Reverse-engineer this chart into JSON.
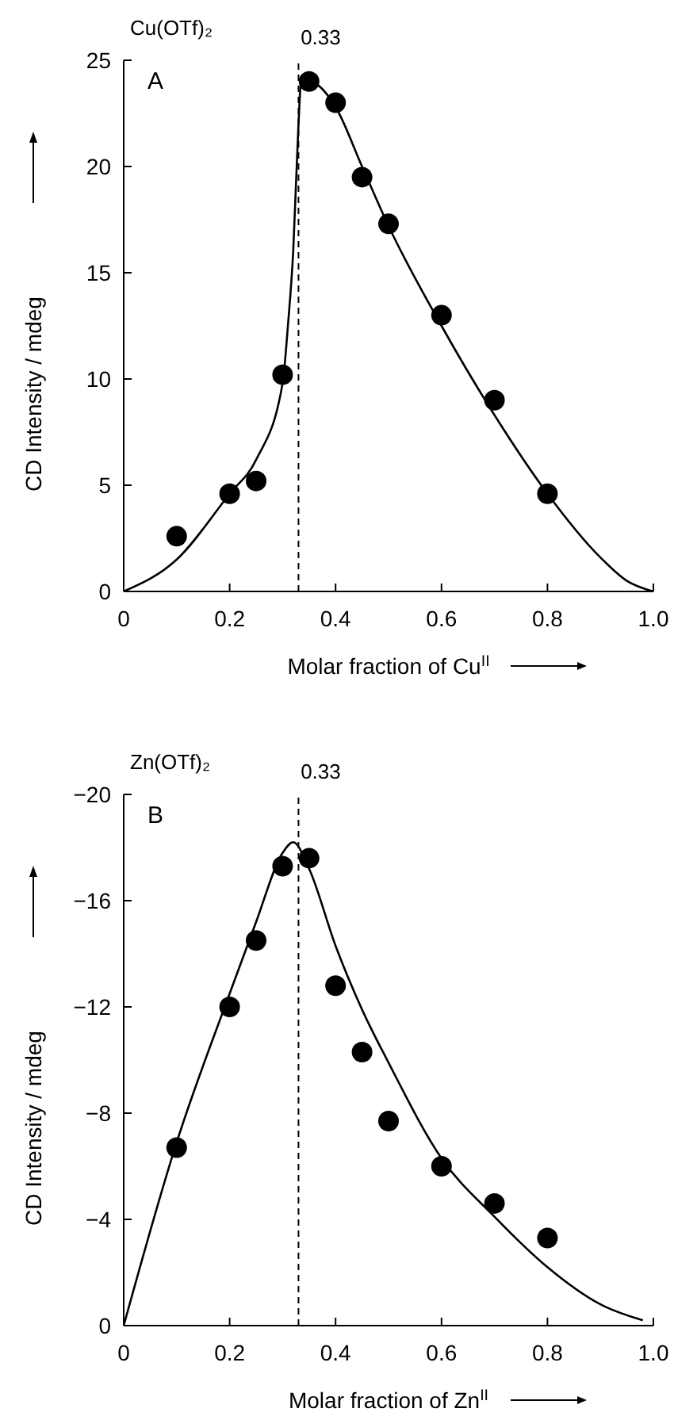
{
  "chart_data": [
    {
      "type": "scatter",
      "title": "Cu(OTf)₂",
      "xlabel": "Molar fraction of Cu$^{II}$",
      "ylabel": "CD Intensity / mdeg",
      "annotations": [
        "A"
      ],
      "xlim": [
        0,
        1
      ],
      "xticks": [
        0,
        0.2,
        0.4,
        0.6,
        0.8,
        {
          "value": 1,
          "label": "1.0"
        }
      ],
      "ylim": [
        0,
        25
      ],
      "yticks": [
        0,
        5,
        10,
        15,
        20,
        25
      ],
      "grid": false,
      "marker": "circle",
      "ref_lines": [
        {
          "axis": "x",
          "value": 0.33,
          "label": "0.33",
          "line_style": "dashed",
          "color": "#000000"
        }
      ],
      "series": [
        {
          "type": "scatter",
          "color": "#000000",
          "x": [
            0.1,
            0.2,
            0.25,
            0.3,
            0.35,
            0.4,
            0.45,
            0.5,
            0.6,
            0.7,
            0.8
          ],
          "values": [
            2.6,
            4.6,
            5.2,
            10.2,
            24,
            23,
            19.5,
            17.3,
            13,
            9,
            4.6
          ]
        },
        {
          "type": "line",
          "color": "#000000",
          "marker": "none",
          "line_style": "solid",
          "x": [
            0,
            0.1,
            0.2,
            0.25,
            0.3,
            0.31,
            0.32,
            0.33,
            0.335,
            0.35,
            0.4,
            0.45,
            0.5,
            0.6,
            0.7,
            0.8,
            0.9,
            0.95,
            1
          ],
          "values": [
            0,
            1.5,
            4.6,
            6.2,
            9.8,
            12.5,
            16,
            22,
            24,
            24,
            22.8,
            20,
            17.2,
            12.5,
            8.3,
            4.6,
            1.6,
            0.5,
            0
          ]
        }
      ]
    },
    {
      "type": "scatter",
      "title": "Zn(OTf)₂",
      "xlabel": "Molar fraction of Zn$^{II}$",
      "ylabel": "CD Intensity / mdeg",
      "annotations": [
        "B"
      ],
      "xlim": [
        0,
        1
      ],
      "xticks": [
        0,
        0.2,
        0.4,
        0.6,
        0.8,
        {
          "value": 1,
          "label": "1.0"
        }
      ],
      "ylim": [
        0,
        -20
      ],
      "yticks": [
        0,
        {
          "value": -4,
          "label": "−4"
        },
        {
          "value": -8,
          "label": "−8"
        },
        {
          "value": -12,
          "label": "−12"
        },
        {
          "value": -16,
          "label": "−16"
        },
        {
          "value": -20,
          "label": "−20"
        }
      ],
      "grid": false,
      "marker": "circle",
      "ref_lines": [
        {
          "axis": "x",
          "value": 0.33,
          "label": "0.33",
          "line_style": "dashed",
          "color": "#000000"
        }
      ],
      "series": [
        {
          "type": "scatter",
          "color": "#000000",
          "x": [
            0.1,
            0.2,
            0.25,
            0.3,
            0.35,
            0.4,
            0.45,
            0.5,
            0.6,
            0.7,
            0.8
          ],
          "values": [
            -6.7,
            -12,
            -14.5,
            -17.3,
            -17.6,
            -12.8,
            -10.3,
            -7.7,
            -6,
            -4.6,
            -3.3
          ]
        },
        {
          "type": "line",
          "color": "#000000",
          "marker": "none",
          "line_style": "solid",
          "x": [
            0,
            0.1,
            0.2,
            0.25,
            0.3,
            0.32,
            0.35,
            0.4,
            0.45,
            0.5,
            0.6,
            0.7,
            0.8,
            0.9,
            0.98
          ],
          "values": [
            0,
            -6.9,
            -12.5,
            -15.2,
            -17.8,
            -18.2,
            -17.2,
            -14.3,
            -11.9,
            -9.9,
            -6.3,
            -4.1,
            -2.2,
            -0.8,
            -0.2
          ]
        }
      ]
    }
  ]
}
